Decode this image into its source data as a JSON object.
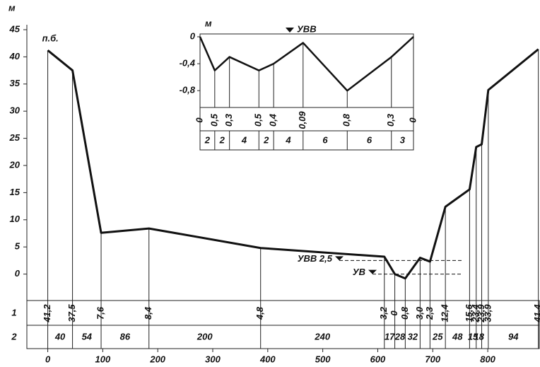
{
  "chart_data": [
    {
      "type": "profile",
      "y_label": "м",
      "x": [
        0,
        45,
        97,
        184,
        387,
        612,
        631,
        650,
        677,
        695,
        723,
        767,
        779,
        789,
        801,
        892
      ],
      "y": [
        41.2,
        37.5,
        7.6,
        8.4,
        4.8,
        3.2,
        0,
        -0.8,
        3.0,
        2.3,
        12.4,
        15.6,
        23.4,
        23.9,
        33.9,
        41.4
      ],
      "value_labels": [
        "41,2",
        "37,5",
        "7,6",
        "8,4",
        "4,8",
        "3,2",
        "0",
        "0,8",
        "3,0",
        "2,3",
        "12,4",
        "15,6",
        "23,4",
        "23,9",
        "33,9",
        "41,4"
      ],
      "intervals": [
        40,
        54,
        86,
        200,
        240,
        17,
        28,
        32,
        null,
        25,
        48,
        15,
        18,
        null,
        94
      ],
      "row_labels": [
        "1",
        "2"
      ],
      "point_label": "п.б.",
      "water_levels": [
        {
          "label": "УВВ 2,5",
          "value": 2.5
        },
        {
          "label": "УВ",
          "value": 0
        }
      ],
      "xlim": [
        -38,
        895
      ],
      "ylim": [
        -5,
        45
      ],
      "xticks": [
        0,
        100,
        200,
        300,
        400,
        500,
        600,
        700,
        800
      ],
      "yticks": [
        0,
        5,
        10,
        15,
        20,
        25,
        30,
        35,
        40,
        45
      ]
    },
    {
      "type": "inset",
      "y_label": "м",
      "y": [
        0,
        -0.5,
        -0.3,
        -0.5,
        -0.4,
        -0.09,
        -0.8,
        -0.3,
        0
      ],
      "value_labels": [
        "0",
        "0,5",
        "0,3",
        "0,5",
        "0,4",
        "0,09",
        "0,8",
        "0,3",
        "0"
      ],
      "intervals": [
        2,
        2,
        4,
        2,
        4,
        6,
        6,
        3
      ],
      "water_level": {
        "label": "УВВ",
        "value": 0
      },
      "ylim": [
        -1.05,
        0
      ],
      "yticks": [
        0,
        {
          "value": -0.4,
          "label": "-0,4"
        },
        {
          "value": -0.8,
          "label": "-0,8"
        }
      ]
    }
  ]
}
